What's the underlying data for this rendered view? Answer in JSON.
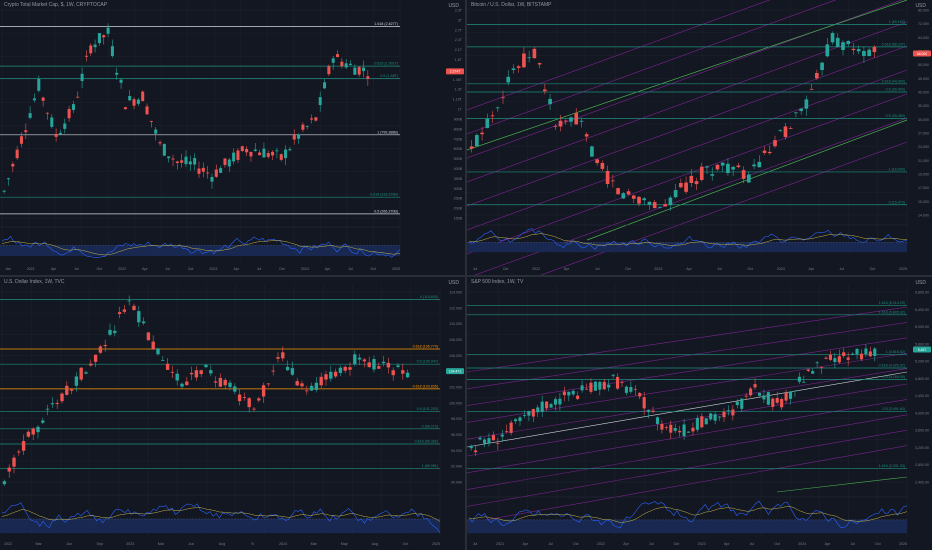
{
  "colors": {
    "background": "#131722",
    "grid": "#1e222d",
    "axis_text": "#787b86",
    "candle_up": "#26a69a",
    "candle_down": "#ef5350",
    "fib_level": "#1e8f7e",
    "channel": "#9c27b0",
    "trend_green": "#4caf50",
    "rsi_blue": "#2962ff",
    "rsi_ma": "#c8b84a",
    "orange_level": "#ff9800",
    "white_level": "#d1d4dc"
  },
  "panels": [
    {
      "id": "crypto_total",
      "title": "Crypto Total Market Cap, $, 1W, CRYPTOCAP",
      "currency": "USD",
      "price_label": "2.374T",
      "price_color": "#ef5350",
      "x_ticks": [
        "Jan",
        "2021",
        "Apr",
        "Jul",
        "Oct",
        "2022",
        "Apr",
        "Jul",
        "Oct",
        "2023",
        "Apr",
        "Jul",
        "Oct",
        "2024",
        "Apr",
        "Jul",
        "Oct",
        "2025"
      ],
      "y_ticks": [
        "3.3T",
        "3T",
        "2.7T",
        "2.4T",
        "2.1T",
        "1.8T",
        "1.6T",
        "1.45T",
        "1.3T",
        "1.15T",
        "1T",
        "900B",
        "800B",
        "700B",
        "600B",
        "500B",
        "400B",
        "350B",
        "300B",
        "250B",
        "200B",
        "150B"
      ],
      "level_labels": [
        "1.618 (2.827T)",
        "0.618 (1.901T)",
        "0.5 (1.68T)",
        "1 (799.388B)",
        "0.618 (318.229B)",
        "0.5 (266.370B)"
      ]
    },
    {
      "id": "btc_usd",
      "title": "Bitcoin / U.S. Dollar, 1W, BITSTAMP",
      "currency": "USD",
      "price_label": "66.000",
      "price_color": "#ef5350",
      "x_ticks": [
        "Jul",
        "Oct",
        "2022",
        "Apr",
        "Jul",
        "Oct",
        "2023",
        "Apr",
        "Jul",
        "Oct",
        "2024",
        "Apr",
        "Jul",
        "Oct",
        "2025"
      ],
      "y_ticks": [
        "80,000",
        "72,000",
        "64,000",
        "57,000",
        "50,000",
        "45,000",
        "40,000",
        "35,000",
        "30,000",
        "27,000",
        "24,000",
        "21,000",
        "19,000",
        "17,000",
        "15,000",
        "14,000"
      ],
      "level_labels": [
        "1 (69,163)",
        "0.618 (58,237)",
        "0.618 (44,400)",
        "0.5 (39,400)",
        "0.5 (30,450)",
        "1 (18,200)",
        "0 (15,473)"
      ]
    },
    {
      "id": "dxy",
      "title": "U.S. Dollar Index, 1W, TVC",
      "currency": "USD",
      "price_label": "104.471",
      "price_color": "#26a69a",
      "x_ticks": [
        "2022",
        "Mar",
        "Jun",
        "Sep",
        "2023",
        "Mar",
        "Jun",
        "Aug",
        "N",
        "2024",
        "Mar",
        "May",
        "Aug",
        "Oct",
        "2025"
      ],
      "y_ticks": [
        "114.000",
        "112.000",
        "110.000",
        "108.000",
        "106.000",
        "104.000",
        "102.000",
        "100.000",
        "98.000",
        "96.000",
        "94.000",
        "92.000",
        "90.000"
      ],
      "level_labels": [
        "0 (114.805)",
        "0.618 (106.774)",
        "0.5 (105.047)",
        "0.618 (103.835)",
        "0.5 (101.253)",
        "0 (98.215)",
        "0.618 (96.382)",
        "1 (89.961)"
      ]
    },
    {
      "id": "spx",
      "title": "S&P 500 Index, 1W, TV",
      "currency": "USD",
      "price_label": "5,467",
      "price_color": "#26a69a",
      "x_ticks": [
        "Jul",
        "2021",
        "Apr",
        "Jul",
        "Oct",
        "2022",
        "Apr",
        "Jul",
        "Oct",
        "2023",
        "Apr",
        "Jul",
        "Oct",
        "2024",
        "Apr",
        "Jul",
        "Oct",
        "2025"
      ],
      "y_ticks": [
        "6,800.00",
        "6,400.00",
        "6,000.00",
        "5,600.00",
        "5,200.00",
        "4,800.00",
        "4,400.00",
        "4,000.00",
        "3,600.00",
        "3,200.00",
        "2,800.00",
        "2,400.00"
      ],
      "level_labels": [
        "1.618 (6,214.29)",
        "1.618 (5,895.32)",
        "1 (4,818.62)",
        "0.618 (4,325.92)",
        "0.5 (4,165.00)",
        "0.5 (3,491.60)",
        "1.618 (2,331.30)"
      ]
    }
  ],
  "chart_data": [
    {
      "type": "line",
      "title": "Crypto Total Market Cap, $, 1W, CRYPTOCAP",
      "ylabel": "USD",
      "x": [
        "2020-12",
        "2021-02",
        "2021-04",
        "2021-06",
        "2021-08",
        "2021-10",
        "2021-11",
        "2022-01",
        "2022-03",
        "2022-05",
        "2022-07",
        "2022-09",
        "2022-11",
        "2023-01",
        "2023-03",
        "2023-06",
        "2023-09",
        "2023-11",
        "2024-01",
        "2024-03",
        "2024-05",
        "2024-07"
      ],
      "series": [
        {
          "name": "",
          "values": [
            0.55,
            1.35,
            2.15,
            1.4,
            1.8,
            2.75,
            2.95,
            1.9,
            2.0,
            1.25,
            1.0,
            0.95,
            0.8,
            1.0,
            1.2,
            1.15,
            1.05,
            1.4,
            1.65,
            2.6,
            2.45,
            2.37
          ]
        }
      ],
      "ylim": [
        0.15,
        3.3
      ],
      "y_unit": "T"
    },
    {
      "type": "line",
      "title": "Bitcoin / U.S. Dollar, 1W, BITSTAMP",
      "ylabel": "USD",
      "x": [
        "2021-06",
        "2021-08",
        "2021-10",
        "2021-11",
        "2022-01",
        "2022-03",
        "2022-05",
        "2022-07",
        "2022-09",
        "2022-11",
        "2023-01",
        "2023-03",
        "2023-06",
        "2023-08",
        "2023-10",
        "2023-12",
        "2024-02",
        "2024-03",
        "2024-05",
        "2024-07"
      ],
      "series": [
        {
          "name": "",
          "values": [
            35000,
            47000,
            61000,
            67000,
            42000,
            45000,
            30000,
            21000,
            19500,
            16500,
            23000,
            28000,
            30000,
            26000,
            34000,
            43000,
            52000,
            71000,
            67000,
            66000
          ]
        }
      ],
      "ylim": [
        14000,
        80000
      ]
    },
    {
      "type": "line",
      "title": "U.S. Dollar Index, 1W, TVC",
      "ylabel": "USD",
      "x": [
        "2021-12",
        "2022-02",
        "2022-04",
        "2022-06",
        "2022-08",
        "2022-09",
        "2022-11",
        "2023-01",
        "2023-03",
        "2023-05",
        "2023-07",
        "2023-10",
        "2023-12",
        "2024-02",
        "2024-04",
        "2024-06",
        "2024-07"
      ],
      "series": [
        {
          "name": "",
          "values": [
            90.5,
            96,
            100,
            104,
            108,
            114,
            107,
            103,
            104.5,
            102,
            100,
            106.5,
            101.5,
            104,
            106,
            105,
            104.47
          ]
        }
      ],
      "ylim": [
        90,
        114.8
      ]
    },
    {
      "type": "line",
      "title": "S&P 500 Index, 1W, TV",
      "ylabel": "USD",
      "x": [
        "2020-07",
        "2020-10",
        "2021-01",
        "2021-04",
        "2021-07",
        "2021-10",
        "2022-01",
        "2022-03",
        "2022-06",
        "2022-09",
        "2022-12",
        "2023-03",
        "2023-07",
        "2023-10",
        "2024-01",
        "2024-03",
        "2024-05",
        "2024-07"
      ],
      "series": [
        {
          "name": "",
          "values": [
            3200,
            3400,
            3750,
            4150,
            4400,
            4550,
            4780,
            4400,
            3750,
            3600,
            3850,
            4000,
            4550,
            4150,
            4800,
            5200,
            5300,
            5467
          ]
        }
      ],
      "ylim": [
        2400,
        6800
      ]
    }
  ]
}
